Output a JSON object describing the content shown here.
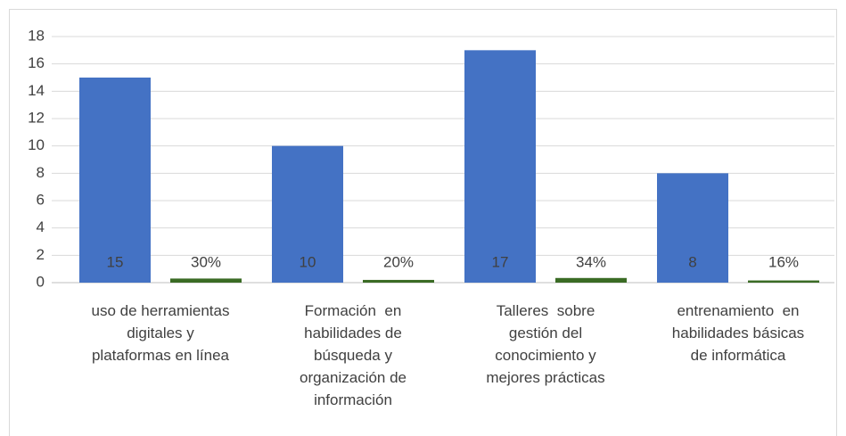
{
  "chart_data": {
    "type": "bar",
    "categories": [
      "uso de herramientas\ndigitales y\nplataformas en línea",
      "Formación  en\nhabilidades de\nbúsqueda y\norganización de\ninformación",
      "Talleres  sobre\ngestión del\nconocimiento y\nmejores prácticas",
      "entrenamiento  en\nhabilidades básicas\nde informática"
    ],
    "series": [
      {
        "color": "#4472c4",
        "values": [
          15,
          10,
          17,
          8
        ]
      },
      {
        "color": "#3a6b24",
        "values": [
          0.3,
          0.2,
          0.34,
          0.16
        ],
        "value_labels": [
          "30%",
          "20%",
          "34%",
          "16%"
        ]
      }
    ],
    "ylim": [
      0,
      18
    ],
    "yticks": [
      0,
      2,
      4,
      6,
      8,
      10,
      12,
      14,
      16,
      18
    ],
    "grid": true
  }
}
